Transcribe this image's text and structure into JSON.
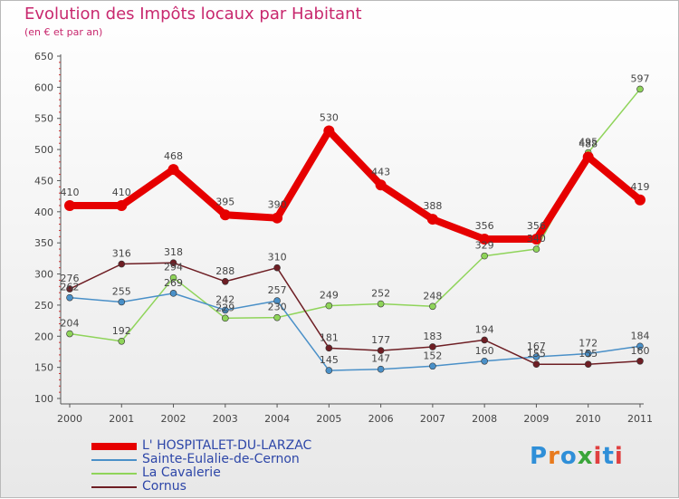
{
  "header": {
    "title": "Evolution des Impôts locaux par Habitant",
    "subtitle": "(en € et par an)"
  },
  "logo": {
    "text": "Proxiti",
    "colors": [
      "#2f8fd8",
      "#e87a1d",
      "#3aa53a",
      "#e04040"
    ]
  },
  "chart_data": {
    "type": "line",
    "x": [
      "2000",
      "2001",
      "2002",
      "2003",
      "2004",
      "2005",
      "2006",
      "2007",
      "2008",
      "2009",
      "2010",
      "2011"
    ],
    "yticks": [
      "100",
      "150",
      "200",
      "250",
      "300",
      "350",
      "400",
      "450",
      "500",
      "550",
      "600",
      "650"
    ],
    "ylim": [
      100,
      650
    ],
    "grid": false,
    "legend_position": "bottom-left",
    "series": [
      {
        "name": "L' HOSPITALET-DU-LARZAC",
        "color": "#e60000",
        "values": [
          410,
          410,
          468,
          395,
          390,
          530,
          443,
          388,
          356,
          356,
          488,
          419
        ]
      },
      {
        "name": "Sainte-Eulalie-de-Cernon",
        "color": "#4a90c8",
        "values": [
          262,
          255,
          269,
          242,
          257,
          145,
          147,
          152,
          160,
          167,
          172,
          184
        ]
      },
      {
        "name": "La Cavalerie",
        "color": "#8fd45a",
        "values": [
          204,
          192,
          294,
          229,
          230,
          249,
          252,
          248,
          329,
          340,
          495,
          597
        ]
      },
      {
        "name": "Cornus",
        "color": "#6e1e24",
        "values": [
          276,
          316,
          318,
          288,
          310,
          181,
          177,
          183,
          194,
          155,
          155,
          160
        ]
      }
    ]
  }
}
